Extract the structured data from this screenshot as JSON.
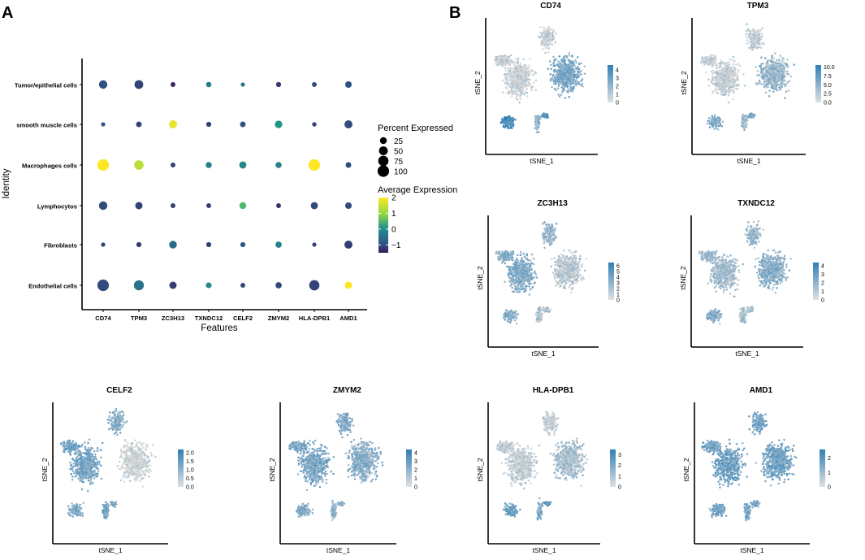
{
  "panels": {
    "a_label": "A",
    "b_label": "B"
  },
  "chart_data": [
    {
      "type": "dotplot",
      "panel": "A",
      "xlabel": "Features",
      "ylabel": "Identity",
      "genes": [
        "CD74",
        "TPM3",
        "ZC3H13",
        "TXNDC12",
        "CELF2",
        "ZMYM2",
        "HLA-DPB1",
        "AMD1"
      ],
      "cell_types": [
        "Tumor/epithelial cells",
        "smooth muscle cells",
        "Macrophages cells",
        "Lymphocytos",
        "Fibroblasts",
        "Endothelial cells"
      ],
      "percent_expressed": [
        [
          45,
          50,
          8,
          12,
          5,
          10,
          8,
          22
        ],
        [
          5,
          14,
          40,
          10,
          14,
          33,
          6,
          40
        ],
        [
          100,
          60,
          8,
          18,
          28,
          18,
          100,
          14
        ],
        [
          45,
          30,
          8,
          8,
          25,
          8,
          28,
          22
        ],
        [
          5,
          10,
          35,
          10,
          10,
          20,
          5,
          40
        ],
        [
          100,
          70,
          30,
          15,
          8,
          20,
          75,
          30
        ]
      ],
      "average_expression": [
        [
          -0.2,
          -0.4,
          -0.9,
          0.5,
          0.4,
          -0.6,
          -0.3,
          -0.2
        ],
        [
          -0.1,
          -0.4,
          1.9,
          -0.4,
          -0.2,
          0.8,
          -0.4,
          -0.3
        ],
        [
          2.0,
          1.7,
          -0.5,
          0.5,
          0.6,
          0.5,
          2.0,
          -0.3
        ],
        [
          -0.3,
          -0.4,
          -0.5,
          -0.5,
          1.2,
          -0.7,
          -0.3,
          -0.3
        ],
        [
          -0.4,
          -0.5,
          0.2,
          -0.4,
          -0.1,
          0.5,
          -0.4,
          -0.5
        ],
        [
          -0.3,
          0.3,
          -0.5,
          0.6,
          -0.4,
          -0.3,
          -0.4,
          2.0
        ]
      ],
      "legend_size": {
        "title": "Percent Expressed",
        "values": [
          25,
          50,
          75,
          100
        ],
        "labels": [
          "25",
          "50",
          "75",
          "100"
        ]
      },
      "legend_color": {
        "title": "Average Expression",
        "range": [
          -1.5,
          2.0
        ],
        "ticks": [
          2,
          1,
          0,
          -1
        ],
        "labels": [
          "2",
          "1",
          "0",
          "−1"
        ]
      },
      "colors": {
        "low": "#3b1c5a",
        "mid_low": "#2c5f8a",
        "mid": "#1fa187",
        "mid_high": "#a0da39",
        "high": "#fde725"
      }
    },
    {
      "type": "scatter",
      "panel": "B",
      "kind": "tsne_feature_plots",
      "xlabel": "tSNE_1",
      "ylabel": "tSNE_2",
      "colors": {
        "low": "#d8d8d8",
        "high": "#2f7fb5"
      },
      "plots": [
        {
          "title": "CD74",
          "ticks": [
            "4",
            "3",
            "2",
            "1",
            "0"
          ],
          "tick_values": [
            4,
            3,
            2,
            1,
            0
          ],
          "max": 4.6,
          "pattern": "rightbig"
        },
        {
          "title": "TPM3",
          "ticks": [
            "10.0",
            "7.5",
            "5.0",
            "2.5",
            "0.0"
          ],
          "tick_values": [
            10,
            7.5,
            5,
            2.5,
            0
          ],
          "max": 10.6,
          "pattern": "rightmed"
        },
        {
          "title": "ZC3H13",
          "ticks": [
            "6",
            "5",
            "4",
            "3",
            "2",
            "1",
            "0"
          ],
          "tick_values": [
            6,
            5,
            4,
            3,
            2,
            1,
            0
          ],
          "max": 6.6,
          "pattern": "left"
        },
        {
          "title": "TXNDC12",
          "ticks": [
            "4",
            "3",
            "2",
            "1",
            "0"
          ],
          "tick_values": [
            4,
            3,
            2,
            1,
            0
          ],
          "max": 4.4,
          "pattern": "mixed"
        },
        {
          "title": "CELF2",
          "ticks": [
            "2.0",
            "1.5",
            "1.0",
            "0.5",
            "0.0"
          ],
          "tick_values": [
            2,
            1.5,
            1,
            0.5,
            0
          ],
          "max": 2.2,
          "pattern": "leftbig"
        },
        {
          "title": "ZMYM2",
          "ticks": [
            "4",
            "3",
            "2",
            "1",
            "0"
          ],
          "tick_values": [
            4,
            3,
            2,
            1,
            0
          ],
          "max": 4.4,
          "pattern": "all"
        },
        {
          "title": "HLA-DPB1",
          "ticks": [
            "3",
            "2",
            "1",
            "0"
          ],
          "tick_values": [
            3,
            2,
            1,
            0
          ],
          "max": 3.5,
          "pattern": "rightlow"
        },
        {
          "title": "AMD1",
          "ticks": [
            "2",
            "1",
            "0"
          ],
          "tick_values": [
            2,
            1,
            0
          ],
          "max": 2.6,
          "pattern": "allhigh"
        }
      ]
    }
  ]
}
